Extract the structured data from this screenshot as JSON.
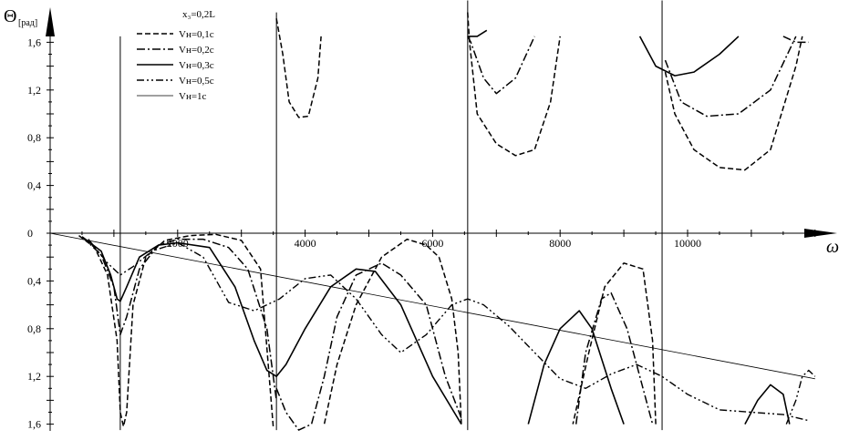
{
  "chart_data": {
    "type": "line",
    "ylabel_symbol": "Θ",
    "ylabel_unit": "[рад]",
    "xlabel": "ω",
    "legend_title": "x₃=0,2L",
    "x_ticks": [
      "2000",
      "4000",
      "6000",
      "8000",
      "10000"
    ],
    "y_ticks_upper": [
      "1,6",
      "1,2",
      "0,8",
      "0,4",
      "0"
    ],
    "y_ticks_lower": [
      "0,4",
      "0,8",
      "1,2",
      "1,6"
    ],
    "legend_placement": "top-left",
    "grid": false,
    "vertical_lines_x": [
      1100,
      3550,
      6550,
      9600
    ],
    "series": [
      {
        "name": "Vн=0,1с",
        "style": "dashed",
        "segments": [
          [
            [
              450,
              -0.02
            ],
            [
              700,
              -0.12
            ],
            [
              900,
              -0.35
            ],
            [
              1050,
              -0.9
            ],
            [
              1100,
              -1.5
            ],
            [
              1150,
              -1.62
            ],
            [
              1200,
              -1.5
            ],
            [
              1300,
              -0.6
            ],
            [
              1500,
              -0.2
            ],
            [
              1800,
              -0.06
            ],
            [
              2200,
              -0.02
            ],
            [
              2600,
              -0.01
            ],
            [
              3000,
              -0.06
            ],
            [
              3300,
              -0.3
            ],
            [
              3500,
              -1.62
            ]
          ],
          [
            [
              3550,
              1.8
            ],
            [
              3650,
              1.5
            ],
            [
              3750,
              1.1
            ],
            [
              3900,
              0.97
            ],
            [
              4050,
              0.98
            ],
            [
              4200,
              1.3
            ],
            [
              4250,
              1.65
            ]
          ],
          [
            [
              6550,
              1.85
            ],
            [
              6580,
              1.6
            ],
            [
              6700,
              1.0
            ],
            [
              7000,
              0.75
            ],
            [
              7300,
              0.65
            ],
            [
              7600,
              0.7
            ],
            [
              7850,
              1.1
            ],
            [
              8000,
              1.65
            ]
          ],
          [
            [
              9650,
              1.35
            ],
            [
              9800,
              1.0
            ],
            [
              10100,
              0.7
            ],
            [
              10500,
              0.55
            ],
            [
              10900,
              0.53
            ],
            [
              11300,
              0.7
            ],
            [
              11700,
              1.4
            ],
            [
              11800,
              1.65
            ]
          ],
          [
            [
              6450,
              -1.6
            ],
            [
              6400,
              -1.0
            ],
            [
              6300,
              -0.55
            ],
            [
              6100,
              -0.2
            ],
            [
              5900,
              -0.1
            ],
            [
              5600,
              -0.05
            ],
            [
              5200,
              -0.2
            ],
            [
              4800,
              -0.6
            ],
            [
              4500,
              -1.1
            ],
            [
              4300,
              -1.6
            ]
          ],
          [
            [
              9500,
              -1.6
            ],
            [
              9450,
              -0.9
            ],
            [
              9300,
              -0.3
            ],
            [
              9000,
              -0.25
            ],
            [
              8700,
              -0.45
            ],
            [
              8450,
              -1.0
            ],
            [
              8200,
              -1.6
            ]
          ]
        ]
      },
      {
        "name": "Vн=0,2с",
        "style": "dash-dot",
        "segments": [
          [
            [
              500,
              -0.03
            ],
            [
              800,
              -0.18
            ],
            [
              1000,
              -0.45
            ],
            [
              1100,
              -0.85
            ],
            [
              1200,
              -0.7
            ],
            [
              1400,
              -0.3
            ],
            [
              1700,
              -0.1
            ],
            [
              2000,
              -0.05
            ],
            [
              2400,
              -0.05
            ],
            [
              2800,
              -0.12
            ],
            [
              3100,
              -0.3
            ],
            [
              3400,
              -0.8
            ],
            [
              3550,
              -1.4
            ]
          ],
          [
            [
              3550,
              -1.3
            ],
            [
              3700,
              -1.5
            ],
            [
              3900,
              -1.65
            ],
            [
              4100,
              -1.6
            ],
            [
              4300,
              -1.2
            ],
            [
              4500,
              -0.7
            ],
            [
              4800,
              -0.35
            ],
            [
              5200,
              -0.25
            ],
            [
              5500,
              -0.35
            ],
            [
              5900,
              -0.6
            ],
            [
              6200,
              -1.2
            ],
            [
              6450,
              -1.55
            ]
          ],
          [
            [
              6550,
              1.65
            ],
            [
              6600,
              1.6
            ],
            [
              6800,
              1.3
            ],
            [
              7000,
              1.17
            ],
            [
              7300,
              1.3
            ],
            [
              7600,
              1.65
            ]
          ],
          [
            [
              9650,
              1.45
            ],
            [
              9900,
              1.1
            ],
            [
              10300,
              0.98
            ],
            [
              10800,
              1.0
            ],
            [
              11300,
              1.2
            ],
            [
              11700,
              1.65
            ]
          ],
          [
            [
              8250,
              -1.6
            ],
            [
              8400,
              -1.0
            ],
            [
              8650,
              -0.55
            ],
            [
              8800,
              -0.5
            ],
            [
              9050,
              -0.8
            ],
            [
              9300,
              -1.3
            ],
            [
              9450,
              -1.6
            ]
          ],
          [
            [
              11500,
              1.65
            ],
            [
              11700,
              1.6
            ],
            [
              11900,
              1.6
            ]
          ]
        ]
      },
      {
        "name": "Vн=0,3с",
        "style": "solid",
        "segments": [
          [
            [
              500,
              -0.03
            ],
            [
              800,
              -0.15
            ],
            [
              950,
              -0.35
            ],
            [
              1050,
              -0.55
            ],
            [
              1100,
              -0.57
            ],
            [
              1200,
              -0.45
            ],
            [
              1400,
              -0.2
            ],
            [
              1700,
              -0.1
            ],
            [
              2000,
              -0.08
            ],
            [
              2500,
              -0.12
            ],
            [
              2900,
              -0.45
            ],
            [
              3200,
              -0.9
            ],
            [
              3400,
              -1.15
            ],
            [
              3550,
              -1.2
            ],
            [
              3700,
              -1.1
            ],
            [
              4000,
              -0.8
            ],
            [
              4400,
              -0.45
            ],
            [
              4800,
              -0.3
            ],
            [
              5100,
              -0.32
            ],
            [
              5500,
              -0.6
            ],
            [
              6000,
              -1.2
            ],
            [
              6450,
              -1.6
            ]
          ],
          [
            [
              6550,
              1.65
            ],
            [
              6700,
              1.65
            ],
            [
              6850,
              1.7
            ]
          ],
          [
            [
              9250,
              1.65
            ],
            [
              9500,
              1.4
            ],
            [
              9800,
              1.32
            ],
            [
              10100,
              1.35
            ],
            [
              10500,
              1.5
            ],
            [
              10800,
              1.65
            ]
          ],
          [
            [
              7500,
              -1.6
            ],
            [
              7750,
              -1.1
            ],
            [
              8000,
              -0.8
            ],
            [
              8300,
              -0.65
            ],
            [
              8500,
              -0.8
            ],
            [
              8800,
              -1.3
            ],
            [
              9000,
              -1.6
            ]
          ],
          [
            [
              10900,
              -1.6
            ],
            [
              11100,
              -1.4
            ],
            [
              11300,
              -1.27
            ],
            [
              11500,
              -1.35
            ],
            [
              11600,
              -1.6
            ]
          ]
        ]
      },
      {
        "name": "Vн=0,5с",
        "style": "dash-dot-dot",
        "segments": [
          [
            [
              600,
              -0.05
            ],
            [
              900,
              -0.25
            ],
            [
              1100,
              -0.35
            ],
            [
              1300,
              -0.28
            ],
            [
              1600,
              -0.15
            ],
            [
              2000,
              -0.08
            ],
            [
              2400,
              -0.2
            ],
            [
              2800,
              -0.58
            ],
            [
              3200,
              -0.65
            ],
            [
              3600,
              -0.55
            ],
            [
              4000,
              -0.38
            ],
            [
              4400,
              -0.35
            ],
            [
              4800,
              -0.55
            ],
            [
              5200,
              -0.85
            ],
            [
              5500,
              -1.0
            ],
            [
              5900,
              -0.85
            ],
            [
              6300,
              -0.6
            ],
            [
              6550,
              -0.55
            ],
            [
              6800,
              -0.6
            ],
            [
              7200,
              -0.78
            ],
            [
              7600,
              -1.0
            ],
            [
              8000,
              -1.22
            ],
            [
              8400,
              -1.3
            ],
            [
              8800,
              -1.18
            ],
            [
              9200,
              -1.1
            ],
            [
              9600,
              -1.2
            ],
            [
              10000,
              -1.35
            ],
            [
              10500,
              -1.48
            ],
            [
              11000,
              -1.5
            ],
            [
              11500,
              -1.52
            ],
            [
              11900,
              -1.57
            ]
          ]
        ]
      },
      {
        "name": "Vн=1с",
        "style": "thin",
        "segments": [
          [
            [
              0,
              0
            ],
            [
              12000,
              -1.22
            ]
          ]
        ]
      }
    ],
    "extra_segments": [
      [
        [
          11550,
          -1.6
        ],
        [
          11700,
          -1.4
        ],
        [
          11800,
          -1.2
        ],
        [
          11900,
          -1.15
        ],
        [
          12000,
          -1.2
        ]
      ]
    ]
  }
}
